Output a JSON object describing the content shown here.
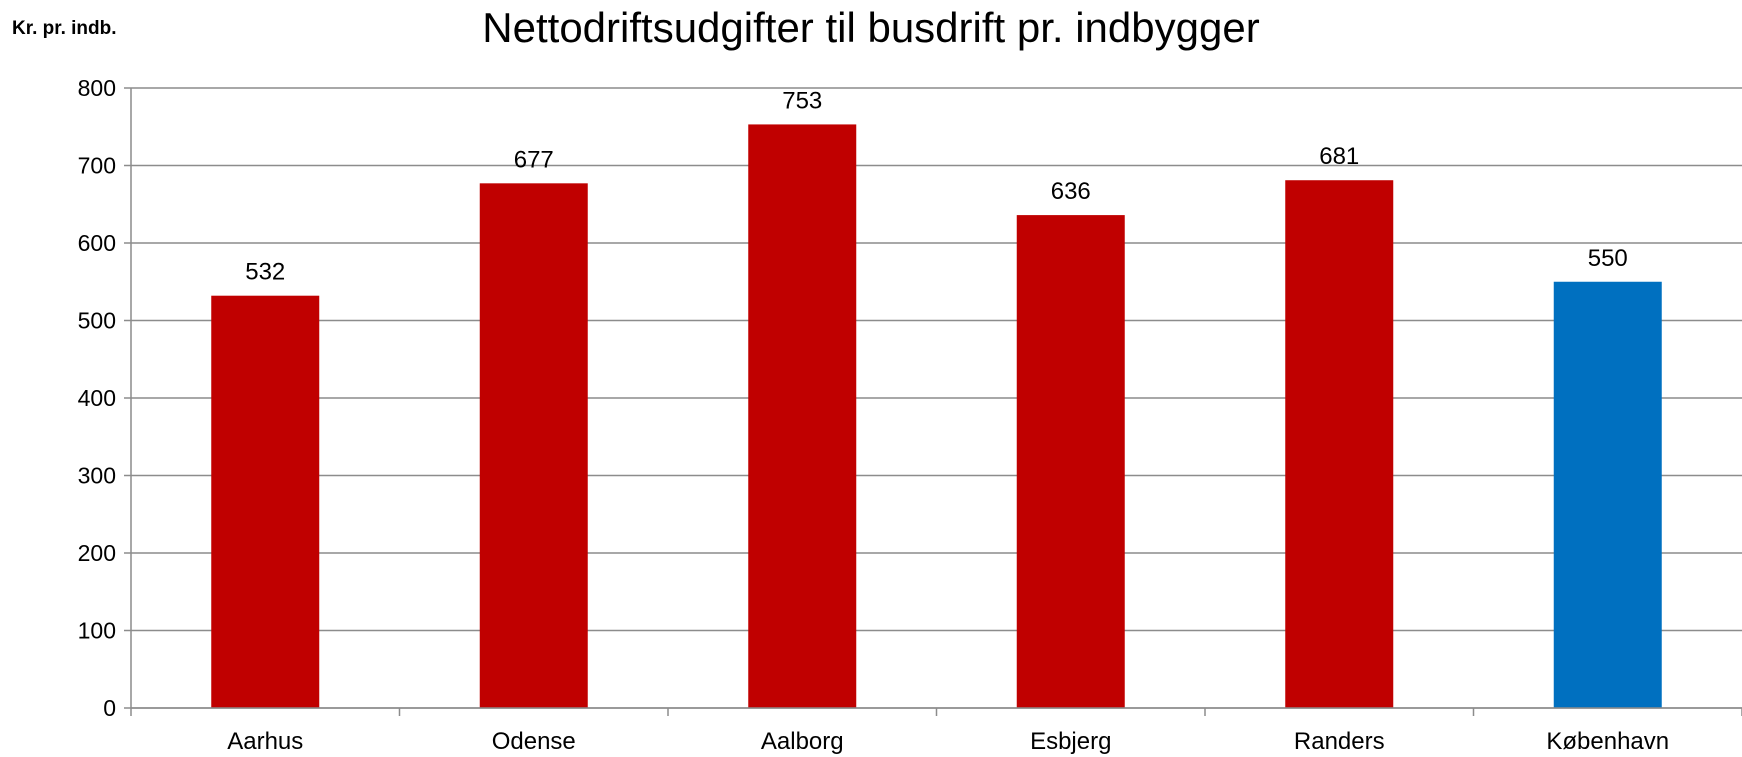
{
  "chart_data": {
    "type": "bar",
    "title": "Nettodriftsudgifter til busdrift pr. indbygger",
    "ylabel": "Kr. pr. indb.",
    "xlabel": "",
    "categories": [
      "Aarhus",
      "Odense",
      "Aalborg",
      "Esbjerg",
      "Randers",
      "København"
    ],
    "values": [
      532,
      677,
      753,
      636,
      681,
      550
    ],
    "bar_colors": [
      "#c00000",
      "#c00000",
      "#c00000",
      "#c00000",
      "#c00000",
      "#0070c0"
    ],
    "ylim": [
      0,
      800
    ],
    "yticks": [
      0,
      100,
      200,
      300,
      400,
      500,
      600,
      700,
      800
    ],
    "grid": true,
    "data_labels": true
  }
}
